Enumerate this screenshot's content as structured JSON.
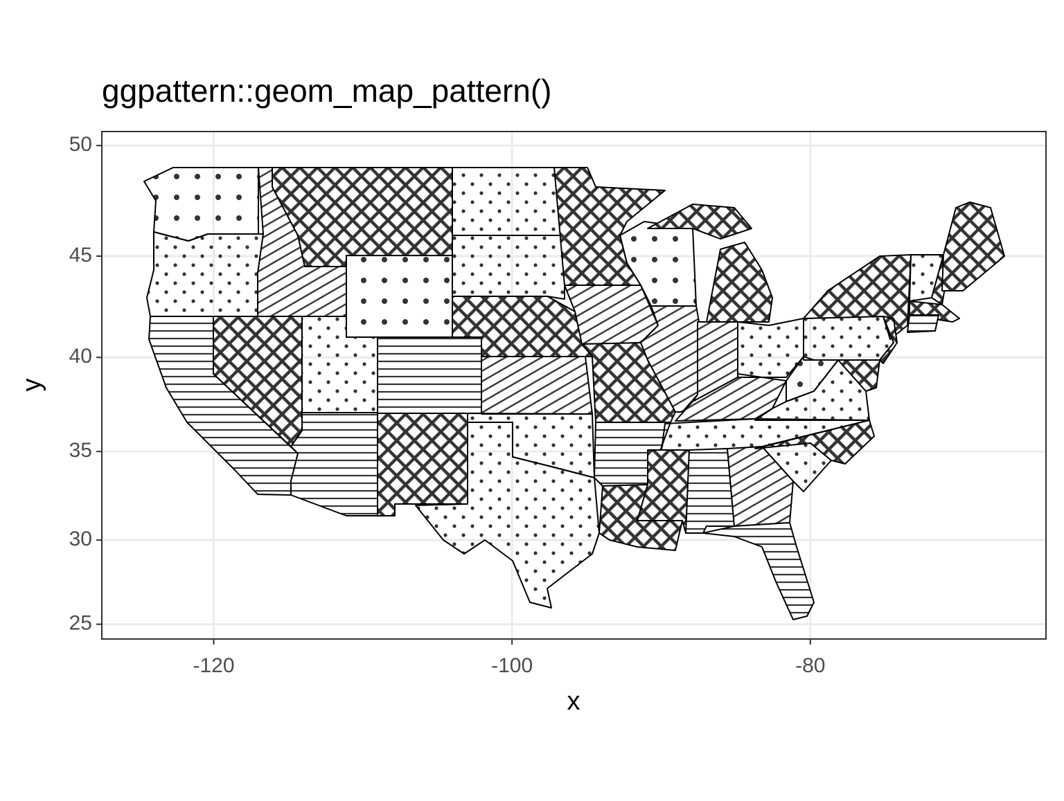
{
  "chart_data": {
    "type": "map",
    "title": "ggpattern::geom_map_pattern()",
    "xlabel": "x",
    "ylabel": "y",
    "xlim": [
      -127.5,
      -64.2
    ],
    "ylim": [
      24.1,
      50.6
    ],
    "xticks": [
      -120,
      -100,
      -80
    ],
    "yticks": [
      25,
      30,
      35,
      40,
      45,
      50
    ],
    "projection": "mercator",
    "grid": true
  }
}
